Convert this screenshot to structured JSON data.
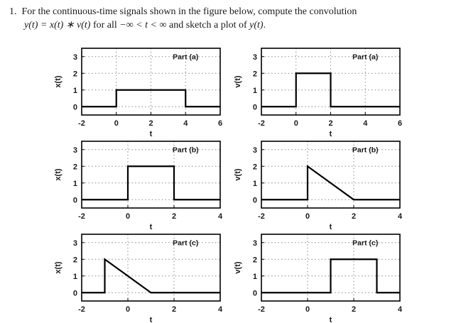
{
  "problem": {
    "number": "1.",
    "line1": "For the continuous-time signals shown in the figure below, compute the convolution",
    "line2_segments": [
      {
        "text": "y(t) = x(t) ∗ v(t)",
        "math": true
      },
      {
        "text": " for all ",
        "math": false
      },
      {
        "text": "−∞ < t < ∞",
        "math": true
      },
      {
        "text": " and sketch a plot of ",
        "math": false
      },
      {
        "text": "y(t)",
        "math": true
      },
      {
        "text": ".",
        "math": false
      }
    ]
  },
  "colors": {
    "signal": "#000000",
    "grid": "#8a8a8a",
    "box": "#000000",
    "text": "#1a1a1a",
    "background": "#ffffff"
  },
  "chart_data": [
    {
      "type": "line",
      "part_label": "Part (a)",
      "ylabel": "x(t)",
      "xlabel": "t",
      "xlim": [
        -2,
        6
      ],
      "ylim": [
        -0.5,
        3.5
      ],
      "xticks": [
        -2,
        0,
        2,
        4,
        6
      ],
      "yticks": [
        0,
        1,
        2,
        3
      ],
      "grid": true,
      "points": [
        [
          -2,
          0
        ],
        [
          0,
          0
        ],
        [
          0,
          1
        ],
        [
          4,
          1
        ],
        [
          4,
          0
        ],
        [
          6,
          0
        ]
      ]
    },
    {
      "type": "line",
      "part_label": "Part (a)",
      "ylabel": "v(t)",
      "xlabel": "t",
      "xlim": [
        -2,
        6
      ],
      "ylim": [
        -0.5,
        3.5
      ],
      "xticks": [
        -2,
        0,
        2,
        4,
        6
      ],
      "yticks": [
        0,
        1,
        2,
        3
      ],
      "grid": true,
      "points": [
        [
          -2,
          0
        ],
        [
          0,
          0
        ],
        [
          0,
          2
        ],
        [
          2,
          2
        ],
        [
          2,
          0
        ],
        [
          6,
          0
        ]
      ]
    },
    {
      "type": "line",
      "part_label": "Part (b)",
      "ylabel": "x(t)",
      "xlabel": "t",
      "xlim": [
        -2,
        4
      ],
      "ylim": [
        -0.5,
        3.5
      ],
      "xticks": [
        -2,
        0,
        2,
        4
      ],
      "yticks": [
        0,
        1,
        2,
        3
      ],
      "grid": true,
      "points": [
        [
          -2,
          0
        ],
        [
          0,
          0
        ],
        [
          0,
          2
        ],
        [
          2,
          2
        ],
        [
          2,
          0
        ],
        [
          4,
          0
        ]
      ]
    },
    {
      "type": "line",
      "part_label": "Part (b)",
      "ylabel": "v(t)",
      "xlabel": "t",
      "xlim": [
        -2,
        4
      ],
      "ylim": [
        -0.5,
        3.5
      ],
      "xticks": [
        -2,
        0,
        2,
        4
      ],
      "yticks": [
        0,
        1,
        2,
        3
      ],
      "grid": true,
      "points": [
        [
          -2,
          0
        ],
        [
          0,
          0
        ],
        [
          0,
          2
        ],
        [
          2,
          0
        ],
        [
          4,
          0
        ]
      ]
    },
    {
      "type": "line",
      "part_label": "Part (c)",
      "ylabel": "x(t)",
      "xlabel": "t",
      "xlim": [
        -2,
        4
      ],
      "ylim": [
        -0.5,
        3.5
      ],
      "xticks": [
        -2,
        0,
        2,
        4
      ],
      "yticks": [
        0,
        1,
        2,
        3
      ],
      "grid": true,
      "points": [
        [
          -2,
          0
        ],
        [
          -1,
          0
        ],
        [
          -1,
          2
        ],
        [
          1,
          0
        ],
        [
          4,
          0
        ]
      ]
    },
    {
      "type": "line",
      "part_label": "Part (c)",
      "ylabel": "v(t)",
      "xlabel": "t",
      "xlim": [
        -2,
        4
      ],
      "ylim": [
        -0.5,
        3.5
      ],
      "xticks": [
        -2,
        0,
        2,
        4
      ],
      "yticks": [
        0,
        1,
        2,
        3
      ],
      "grid": true,
      "points": [
        [
          -2,
          0
        ],
        [
          1,
          0
        ],
        [
          1,
          2
        ],
        [
          3,
          2
        ],
        [
          3,
          0
        ],
        [
          4,
          0
        ]
      ]
    }
  ]
}
